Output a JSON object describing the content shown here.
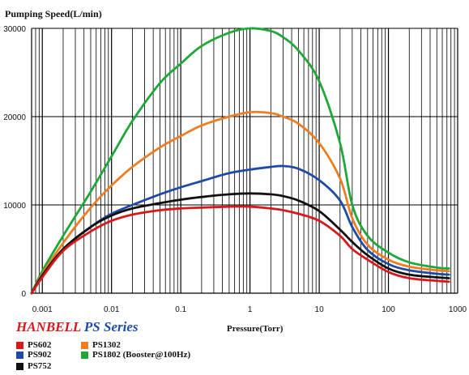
{
  "chart_data": {
    "type": "line",
    "ylabel": "Pumping Speed(L/min)",
    "xlabel": "Pressure(Torr)",
    "xscale": "log",
    "xlim": [
      0.0007,
      1000
    ],
    "ylim": [
      0,
      30000
    ],
    "grid": true,
    "x_ticks": [
      {
        "value": 0.001,
        "label": "0.001"
      },
      {
        "value": 0.01,
        "label": "0.01"
      },
      {
        "value": 0.1,
        "label": "0.1"
      },
      {
        "value": 1,
        "label": "1"
      },
      {
        "value": 10,
        "label": "10"
      },
      {
        "value": 100,
        "label": "100"
      },
      {
        "value": 1000,
        "label": "1000"
      }
    ],
    "y_ticks": [
      {
        "value": 0,
        "label": "0"
      },
      {
        "value": 10000,
        "label": "10000"
      },
      {
        "value": 20000,
        "label": "20000"
      },
      {
        "value": 30000,
        "label": "30000"
      }
    ],
    "x": [
      0.0007,
      0.001,
      0.002,
      0.005,
      0.01,
      0.02,
      0.05,
      0.1,
      0.2,
      0.5,
      1,
      2,
      3,
      5,
      10,
      20,
      30,
      50,
      100,
      200,
      500,
      750
    ],
    "series": [
      {
        "name": "PS1802 (Booster@100Hz)",
        "color": "#1fa83a",
        "values": [
          0,
          2500,
          6500,
          11500,
          15500,
          19500,
          23800,
          26000,
          28000,
          29500,
          30000,
          29700,
          29000,
          27500,
          24000,
          17000,
          10000,
          6500,
          4600,
          3500,
          2900,
          2800
        ]
      },
      {
        "name": "PS1302",
        "color": "#ef7d22",
        "values": [
          0,
          2200,
          5700,
          9700,
          12200,
          14300,
          16500,
          17800,
          19000,
          20000,
          20500,
          20400,
          20000,
          19200,
          17000,
          13000,
          8500,
          5500,
          3800,
          3000,
          2600,
          2500
        ]
      },
      {
        "name": "PS902",
        "color": "#1f4aa8",
        "values": [
          0,
          2000,
          5000,
          7500,
          9000,
          10000,
          11200,
          12000,
          12700,
          13600,
          14000,
          14300,
          14400,
          14100,
          12800,
          10500,
          7500,
          4900,
          3300,
          2600,
          2200,
          2100
        ]
      },
      {
        "name": "PS752",
        "color": "#111111",
        "values": [
          0,
          2000,
          5000,
          7500,
          8800,
          9600,
          10200,
          10600,
          10900,
          11200,
          11300,
          11200,
          11000,
          10500,
          9300,
          7200,
          5800,
          4300,
          2800,
          2100,
          1800,
          1700
        ]
      },
      {
        "name": "PS602",
        "color": "#d7191c",
        "values": [
          0,
          1800,
          4800,
          7000,
          8200,
          8900,
          9400,
          9600,
          9700,
          9800,
          9800,
          9600,
          9400,
          9000,
          8200,
          6500,
          5000,
          3800,
          2400,
          1700,
          1400,
          1300
        ]
      }
    ]
  },
  "brand": {
    "part1": "HANBELL",
    "part2": "PS Series"
  },
  "legend": [
    {
      "name": "PS602",
      "color": "#d7191c"
    },
    {
      "name": "PS1302",
      "color": "#ef7d22"
    },
    {
      "name": "PS902",
      "color": "#1f4aa8"
    },
    {
      "name": "PS1802 (Booster@100Hz)",
      "color": "#1fa83a"
    },
    {
      "name": "PS752",
      "color": "#111111"
    }
  ]
}
